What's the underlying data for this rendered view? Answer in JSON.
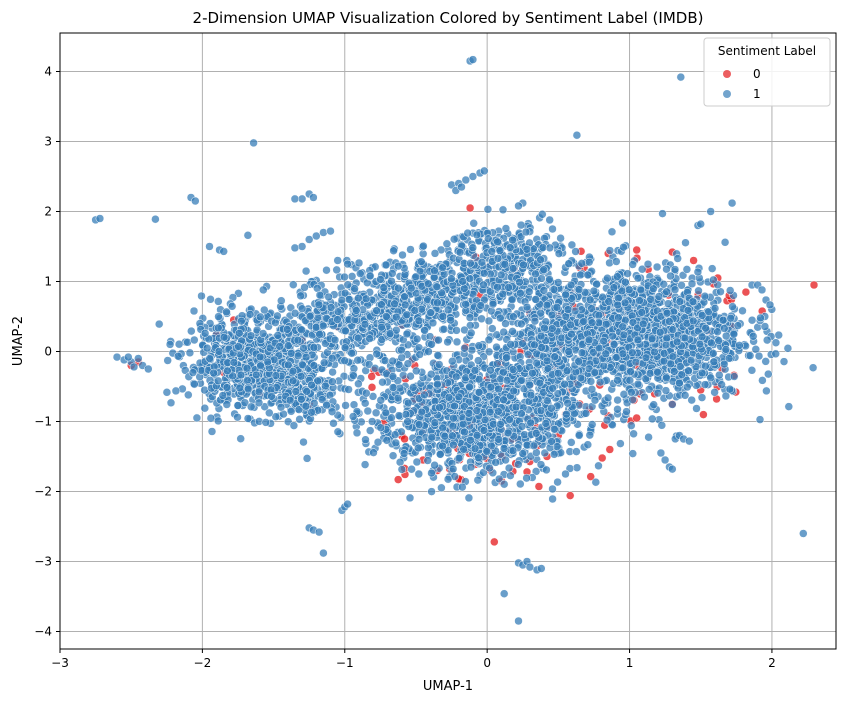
{
  "chart_data": {
    "type": "scatter",
    "title": "2-Dimension UMAP Visualization Colored by Sentiment Label (IMDB)",
    "xlabel": "UMAP-1",
    "ylabel": "UMAP-2",
    "xlim": [
      -3.0,
      2.45
    ],
    "ylim": [
      -4.25,
      4.55
    ],
    "xticks": [
      -3,
      -2,
      -1,
      0,
      1,
      2
    ],
    "xtick_labels": [
      "−3",
      "−2",
      "−1",
      "0",
      "1",
      "2"
    ],
    "yticks": [
      -4,
      -3,
      -2,
      -1,
      0,
      1,
      2,
      3,
      4
    ],
    "ytick_labels": [
      "−4",
      "−3",
      "−2",
      "−1",
      "0",
      "1",
      "2",
      "3",
      "4"
    ],
    "grid": true,
    "legend": {
      "title": "Sentiment Label",
      "placement": "top-right"
    },
    "series": [
      {
        "name": "0",
        "color": "#e41a1c",
        "points": [
          [
            -0.58,
            -1.67
          ],
          [
            0.05,
            -2.72
          ],
          [
            -0.12,
            2.05
          ],
          [
            -0.08,
            1.35
          ],
          [
            -0.1,
            1.25
          ],
          [
            -0.78,
            0.55
          ],
          [
            -0.6,
            0.38
          ],
          [
            0.55,
            0.1
          ],
          [
            0.62,
            -0.45
          ],
          [
            -0.55,
            -0.92
          ],
          [
            -0.58,
            -1.25
          ],
          [
            -0.45,
            -1.55
          ],
          [
            -0.2,
            -1.82
          ],
          [
            0.1,
            -1.85
          ],
          [
            0.28,
            -1.72
          ],
          [
            0.42,
            -1.5
          ],
          [
            0.5,
            -1.2
          ],
          [
            0.55,
            -0.9
          ],
          [
            -1.85,
            -0.3
          ],
          [
            -1.65,
            -0.45
          ],
          [
            -1.4,
            0.3
          ],
          [
            -1.3,
            0.15
          ],
          [
            -1.05,
            0.35
          ],
          [
            -0.92,
            0.45
          ],
          [
            -0.4,
            0.75
          ],
          [
            -0.3,
            1.0
          ],
          [
            0.0,
            1.2
          ],
          [
            0.2,
            1.15
          ],
          [
            0.48,
            0.35
          ],
          [
            0.52,
            -0.25
          ],
          [
            0.6,
            0.82
          ],
          [
            0.65,
            1.2
          ],
          [
            0.85,
            1.4
          ],
          [
            1.05,
            1.45
          ],
          [
            1.3,
            1.42
          ],
          [
            1.45,
            1.3
          ],
          [
            1.62,
            1.05
          ],
          [
            1.7,
            0.8
          ],
          [
            1.72,
            0.35
          ],
          [
            1.65,
            -0.25
          ],
          [
            1.5,
            -0.55
          ],
          [
            1.3,
            -0.75
          ],
          [
            1.05,
            -0.95
          ],
          [
            0.85,
            -0.92
          ],
          [
            0.65,
            -0.75
          ],
          [
            -2.45,
            -0.15
          ],
          [
            -2.5,
            -0.2
          ],
          [
            -0.7,
            -0.3
          ],
          [
            -0.48,
            -0.6
          ],
          [
            -0.35,
            -1.7
          ],
          [
            0.2,
            -1.6
          ],
          [
            0.35,
            -1.35
          ],
          [
            -0.25,
            -0.25
          ],
          [
            0.3,
            0.55
          ],
          [
            -1.9,
            0.25
          ],
          [
            -1.78,
            0.45
          ],
          [
            -1.6,
            -0.6
          ],
          [
            -1.25,
            -0.75
          ]
        ]
      },
      {
        "name": "1",
        "color": "#377eb8",
        "points": [
          [
            -0.12,
            4.15
          ],
          [
            -0.1,
            4.17
          ],
          [
            1.36,
            3.92
          ],
          [
            0.63,
            3.09
          ],
          [
            -1.64,
            2.98
          ],
          [
            -2.75,
            1.88
          ],
          [
            -2.72,
            1.9
          ],
          [
            -2.33,
            1.89
          ],
          [
            -2.08,
            2.2
          ],
          [
            -2.05,
            2.15
          ],
          [
            -1.68,
            1.66
          ],
          [
            -1.95,
            1.5
          ],
          [
            -1.88,
            1.45
          ],
          [
            -1.85,
            1.43
          ],
          [
            1.72,
            2.12
          ],
          [
            1.57,
            2.0
          ],
          [
            1.48,
            1.8
          ],
          [
            1.5,
            1.82
          ],
          [
            1.86,
            0.95
          ],
          [
            1.9,
            0.95
          ],
          [
            1.93,
            0.88
          ],
          [
            1.95,
            0.5
          ],
          [
            1.92,
            0.48
          ],
          [
            2.22,
            -2.6
          ],
          [
            -1.25,
            -2.52
          ],
          [
            -1.22,
            -2.55
          ],
          [
            -1.18,
            -2.58
          ],
          [
            -1.15,
            -2.88
          ],
          [
            -1.02,
            -2.27
          ],
          [
            -1.0,
            -2.22
          ],
          [
            -0.98,
            -2.18
          ],
          [
            0.12,
            -3.46
          ],
          [
            0.22,
            -3.85
          ],
          [
            0.22,
            -3.02
          ],
          [
            0.25,
            -3.05
          ],
          [
            0.28,
            -3.0
          ],
          [
            0.3,
            -3.08
          ],
          [
            0.35,
            -3.12
          ],
          [
            0.38,
            -3.1
          ],
          [
            0.55,
            -1.75
          ],
          [
            -0.48,
            -1.75
          ],
          [
            1.35,
            -1.2
          ],
          [
            1.38,
            -1.25
          ],
          [
            1.42,
            -1.28
          ],
          [
            1.22,
            -1.45
          ],
          [
            1.25,
            -1.55
          ],
          [
            1.28,
            -1.65
          ],
          [
            1.3,
            -1.68
          ],
          [
            -2.6,
            -0.08
          ],
          [
            -2.55,
            -0.12
          ],
          [
            -2.5,
            -0.15
          ],
          [
            -2.45,
            -0.1
          ],
          [
            -2.42,
            -0.2
          ],
          [
            -2.38,
            -0.25
          ],
          [
            -2.48,
            -0.22
          ],
          [
            -2.52,
            -0.08
          ],
          [
            -1.3,
            2.18
          ],
          [
            -1.25,
            2.25
          ],
          [
            -1.22,
            2.2
          ],
          [
            -1.35,
            2.18
          ],
          [
            -0.25,
            2.38
          ],
          [
            -0.2,
            2.4
          ],
          [
            -0.15,
            2.45
          ],
          [
            -0.1,
            2.5
          ],
          [
            -0.05,
            2.55
          ],
          [
            -0.02,
            2.58
          ],
          [
            -0.22,
            2.3
          ],
          [
            -0.18,
            2.35
          ],
          [
            0.25,
            2.12
          ],
          [
            0.22,
            2.08
          ],
          [
            -1.3,
            1.5
          ],
          [
            -1.25,
            1.6
          ],
          [
            -1.2,
            1.65
          ],
          [
            -1.15,
            1.7
          ],
          [
            -1.1,
            1.72
          ],
          [
            -1.35,
            1.48
          ],
          [
            -1.05,
            1.3
          ],
          [
            -0.98,
            1.25
          ]
        ]
      }
    ],
    "clusters": [
      {
        "series": "1",
        "cx": -1.65,
        "cy": -0.15,
        "sx": 0.24,
        "sy": 0.33,
        "n": 720
      },
      {
        "series": "1",
        "cx": -1.3,
        "cy": -0.55,
        "sx": 0.14,
        "sy": 0.22,
        "n": 180
      },
      {
        "series": "1",
        "cx": -0.9,
        "cy": 0.4,
        "sx": 0.3,
        "sy": 0.32,
        "n": 420
      },
      {
        "series": "1",
        "cx": -0.3,
        "cy": 0.85,
        "sx": 0.32,
        "sy": 0.25,
        "n": 420
      },
      {
        "series": "1",
        "cx": 0.15,
        "cy": 1.35,
        "sx": 0.22,
        "sy": 0.3,
        "n": 250
      },
      {
        "series": "1",
        "cx": -0.07,
        "cy": -0.85,
        "sx": 0.36,
        "sy": 0.45,
        "n": 1250
      },
      {
        "series": "1",
        "cx": 1.1,
        "cy": 0.25,
        "sx": 0.36,
        "sy": 0.48,
        "n": 1350
      },
      {
        "series": "1",
        "cx": 0.5,
        "cy": 0.15,
        "sx": 0.2,
        "sy": 0.4,
        "n": 300
      },
      {
        "series": "0",
        "cx": -0.07,
        "cy": -1.0,
        "sx": 0.4,
        "sy": 0.5,
        "n": 90
      },
      {
        "series": "0",
        "cx": 1.1,
        "cy": 0.25,
        "sx": 0.45,
        "sy": 0.6,
        "n": 60
      }
    ]
  }
}
